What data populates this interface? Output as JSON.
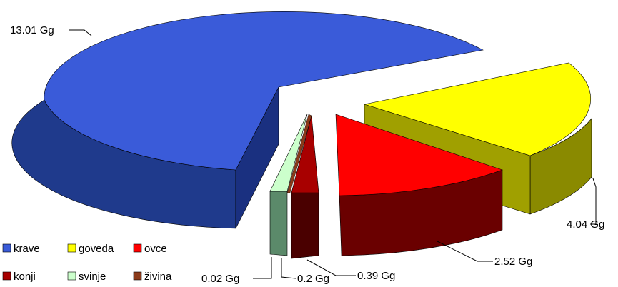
{
  "chart_data": {
    "type": "pie",
    "title": "",
    "unit": "Gg",
    "slices": [
      {
        "name": "krave",
        "value": 13.01,
        "label": "13.01 Gg",
        "color": "#3a5bd9",
        "side": "#1f3a8c"
      },
      {
        "name": "goveda",
        "value": 4.04,
        "label": "4.04 Gg",
        "color": "#ffff00",
        "side": "#8a8a00"
      },
      {
        "name": "ovce",
        "value": 2.52,
        "label": "2.52 Gg",
        "color": "#ff0000",
        "side": "#6a0000"
      },
      {
        "name": "konji",
        "value": 0.39,
        "label": "0.39 Gg",
        "color": "#a80000",
        "side": "#4a0000"
      },
      {
        "name": "svinje",
        "value": 0.02,
        "label": "0.02 Gg",
        "color": "#ccffcc",
        "side": "#5b8a6a"
      },
      {
        "name": "živina",
        "value": 0.2,
        "label": "0.2 Gg",
        "color": "#8b3a1a",
        "side": "#4a1a08"
      }
    ],
    "legend": {
      "position": "bottom-left",
      "rows": [
        [
          {
            "name": "krave",
            "color": "#3a5bd9"
          },
          {
            "name": "goveda",
            "color": "#ffff00"
          },
          {
            "name": "ovce",
            "color": "#ff0000"
          }
        ],
        [
          {
            "name": "konji",
            "color": "#a80000"
          },
          {
            "name": "svinje",
            "color": "#ccffcc"
          },
          {
            "name": "živina",
            "color": "#8b3a1a"
          }
        ]
      ]
    }
  }
}
